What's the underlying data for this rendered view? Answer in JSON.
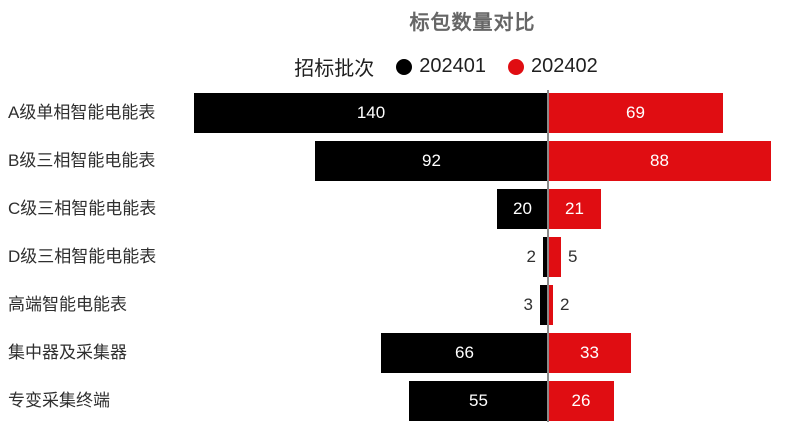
{
  "title": "标包数量对比",
  "legend": {
    "title": "招标批次",
    "items": [
      {
        "label": "202401",
        "color": "#000000"
      },
      {
        "label": "202402",
        "color": "#E00D12"
      }
    ]
  },
  "chart_data": {
    "type": "bar",
    "variant": "diverging-horizontal-tornado",
    "title": "标包数量对比",
    "legend_title": "招标批次",
    "legend_position": "top",
    "grid": false,
    "center_axis_line": true,
    "categories": [
      "A级单相智能电能表",
      "B级三相智能电能表",
      "C级三相智能电能表",
      "D级三相智能电能表",
      "高端智能电能表",
      "集中器及采集器",
      "专变采集终端"
    ],
    "series": [
      {
        "name": "202401",
        "side": "left",
        "color": "#000000",
        "values": [
          140,
          92,
          20,
          2,
          3,
          66,
          55
        ]
      },
      {
        "name": "202402",
        "side": "right",
        "color": "#E00D12",
        "values": [
          69,
          88,
          21,
          5,
          2,
          33,
          26
        ]
      }
    ],
    "value_labels": "inside bars (white) or outside bars (dark) when bar too small",
    "xlim_left": [
      0,
      145
    ],
    "xlim_right": [
      0,
      95
    ]
  },
  "colors": {
    "series_202401": "#000000",
    "series_202402": "#E00D12",
    "title_text": "#666666",
    "category_text": "#2f2f2f",
    "axis_line": "#8a8a8a",
    "background": "#ffffff"
  }
}
